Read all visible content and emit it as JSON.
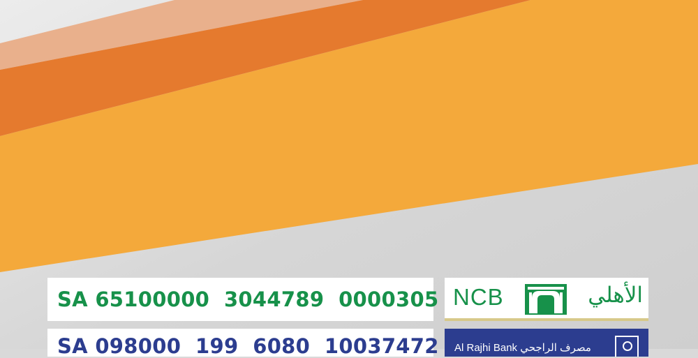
{
  "accounts": {
    "ncb": {
      "iban": "SA 65100000  3044789  0000305",
      "logo_latin": "NCB",
      "logo_arabic": "الأهلي",
      "emblem_icon": "ncb-arch-emblem-icon"
    },
    "rajhi": {
      "iban": "SA 098000  199  6080  10037472",
      "logo_text": "Al Rajhi Bank مصرف الراجحي",
      "logo_icon": "rajhi-emblem-icon"
    }
  },
  "colors": {
    "ncb_green": "#17914a",
    "rajhi_blue": "#2c3d8f",
    "orange_dark": "#e57a2e",
    "orange_light": "#f4a93b",
    "background_gray": "#d9d9d9"
  }
}
